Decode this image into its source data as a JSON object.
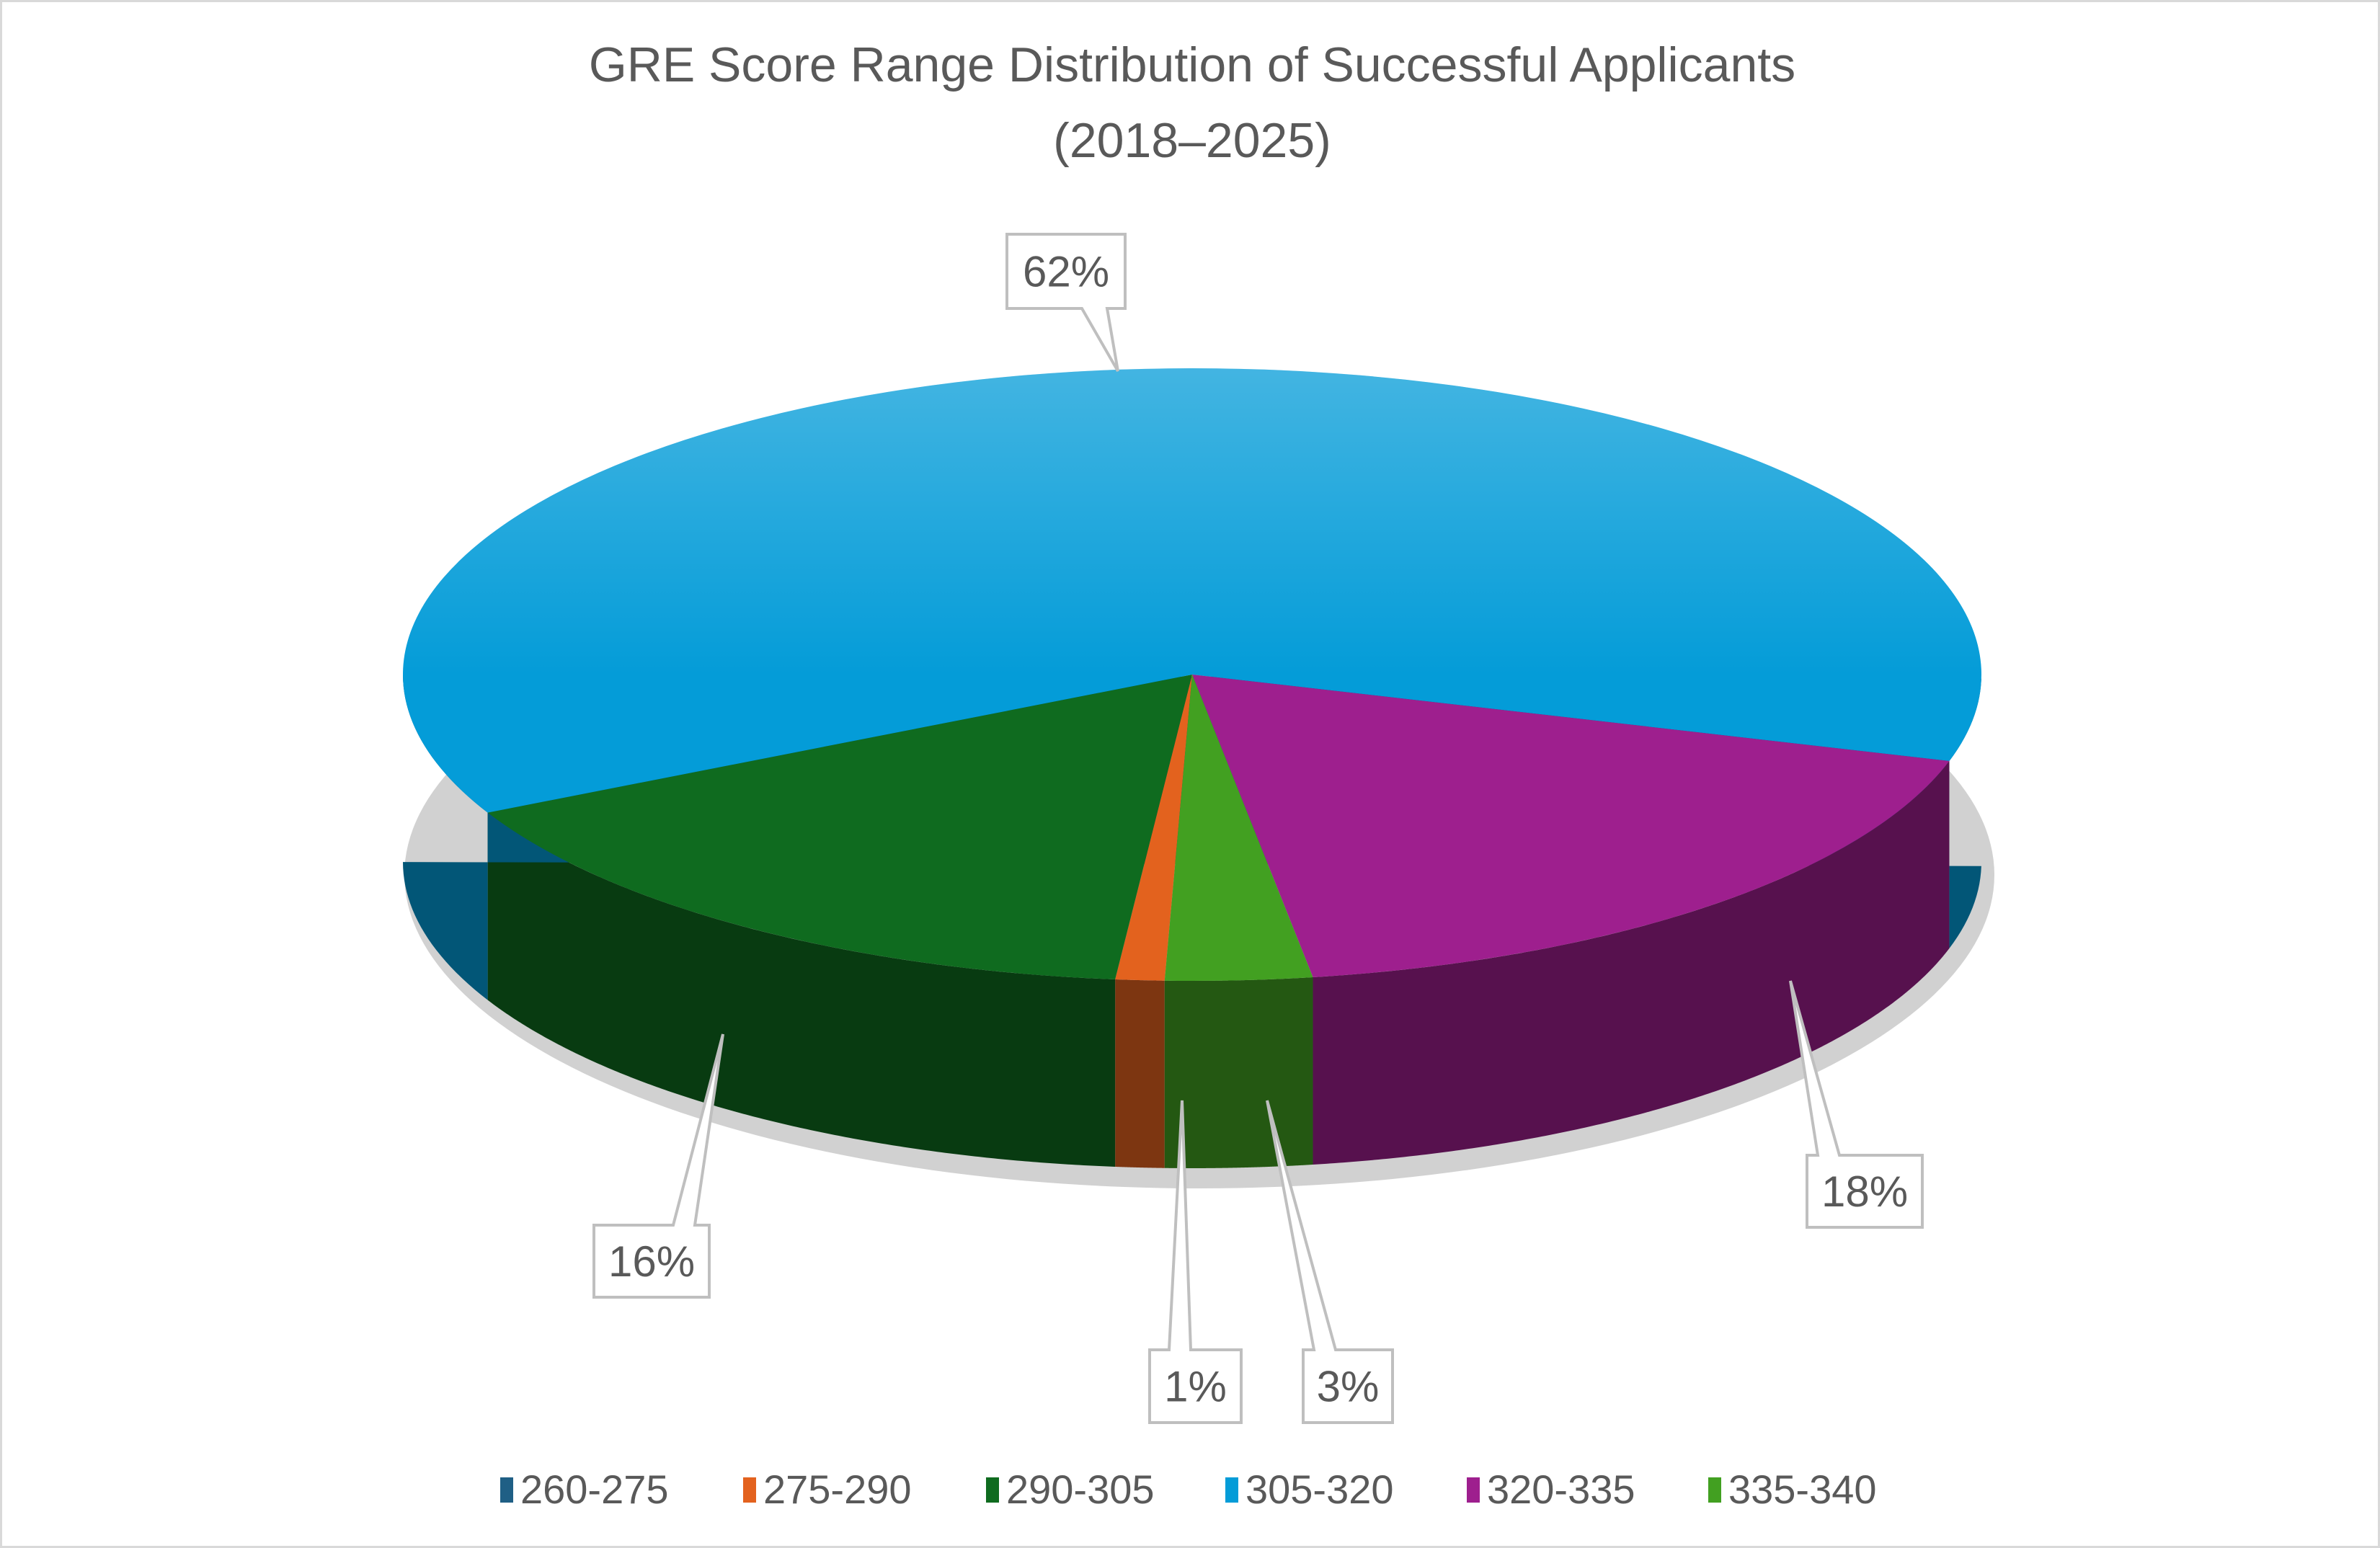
{
  "chart_data": {
    "type": "pie",
    "variant": "3d",
    "title": "GRE Score Range Distribution of Successful Applicants",
    "subtitle": "(2018–2025)",
    "categories": [
      "260-275",
      "275-290",
      "290-305",
      "305-320",
      "320-335",
      "335-340"
    ],
    "values": [
      0,
      1,
      16,
      62,
      18,
      3
    ],
    "data_labels": [
      "",
      "1%",
      "16%",
      "62%",
      "18%",
      "3%"
    ],
    "colors": [
      "#1F5F85",
      "#E3621E",
      "#0F6B1F",
      "#049CD8",
      "#9E1F8E",
      "#42A021"
    ],
    "legend_position": "bottom"
  }
}
